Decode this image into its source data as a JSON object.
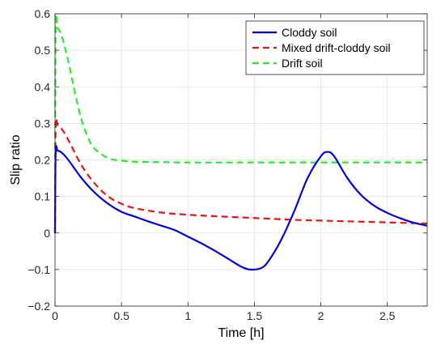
{
  "chart_data": {
    "type": "line",
    "title": "",
    "xlabel": "Time [h]",
    "ylabel": "Slip ratio",
    "xlim": [
      0,
      2.8
    ],
    "ylim": [
      -0.2,
      0.6
    ],
    "xticks": [
      0,
      0.5,
      1,
      1.5,
      2,
      2.5
    ],
    "xtick_labels": [
      "0",
      "0.5",
      "1",
      "1.5",
      "2",
      "2.5"
    ],
    "yticks": [
      -0.2,
      -0.1,
      0,
      0.1,
      0.2,
      0.3,
      0.4,
      0.5,
      0.6
    ],
    "ytick_labels": [
      "−0.2",
      "−0.1",
      "0",
      "0.1",
      "0.2",
      "0.3",
      "0.4",
      "0.5",
      "0.6"
    ],
    "grid": true,
    "legend_position": "top-right",
    "series": [
      {
        "name": "Cloddy soil",
        "color": "#0000dd",
        "style": "solid",
        "x": [
          0,
          0.005,
          0.02,
          0.05,
          0.1,
          0.2,
          0.3,
          0.4,
          0.5,
          0.6,
          0.7,
          0.8,
          0.9,
          1.0,
          1.1,
          1.2,
          1.3,
          1.4,
          1.45,
          1.5,
          1.55,
          1.6,
          1.7,
          1.8,
          1.9,
          2.0,
          2.05,
          2.1,
          2.2,
          2.3,
          2.4,
          2.5,
          2.6,
          2.7,
          2.8
        ],
        "y": [
          0,
          0.22,
          0.225,
          0.22,
          0.2,
          0.15,
          0.11,
          0.08,
          0.058,
          0.045,
          0.032,
          0.02,
          0.008,
          -0.01,
          -0.028,
          -0.048,
          -0.07,
          -0.092,
          -0.099,
          -0.1,
          -0.096,
          -0.08,
          -0.02,
          0.06,
          0.15,
          0.21,
          0.222,
          0.21,
          0.15,
          0.105,
          0.075,
          0.055,
          0.04,
          0.028,
          0.02
        ]
      },
      {
        "name": "Mixed drift-cloddy soil",
        "color": "#ee1111",
        "style": "dashed",
        "x": [
          0,
          0.005,
          0.02,
          0.05,
          0.1,
          0.2,
          0.3,
          0.4,
          0.5,
          0.6,
          0.8,
          1.0,
          1.2,
          1.5,
          1.8,
          2.0,
          2.2,
          2.5,
          2.8
        ],
        "y": [
          0,
          0.29,
          0.295,
          0.285,
          0.255,
          0.185,
          0.135,
          0.1,
          0.08,
          0.068,
          0.056,
          0.05,
          0.046,
          0.041,
          0.036,
          0.034,
          0.032,
          0.029,
          0.026
        ]
      },
      {
        "name": "Drift soil",
        "color": "#22ee22",
        "style": "dashed",
        "x": [
          0,
          0.005,
          0.02,
          0.05,
          0.1,
          0.15,
          0.2,
          0.25,
          0.3,
          0.4,
          0.5,
          0.6,
          0.8,
          1.0,
          1.5,
          2.0,
          2.5,
          2.8
        ],
        "y": [
          0,
          0.555,
          0.56,
          0.54,
          0.47,
          0.385,
          0.31,
          0.26,
          0.23,
          0.205,
          0.198,
          0.195,
          0.194,
          0.193,
          0.193,
          0.193,
          0.193,
          0.193
        ]
      }
    ]
  }
}
